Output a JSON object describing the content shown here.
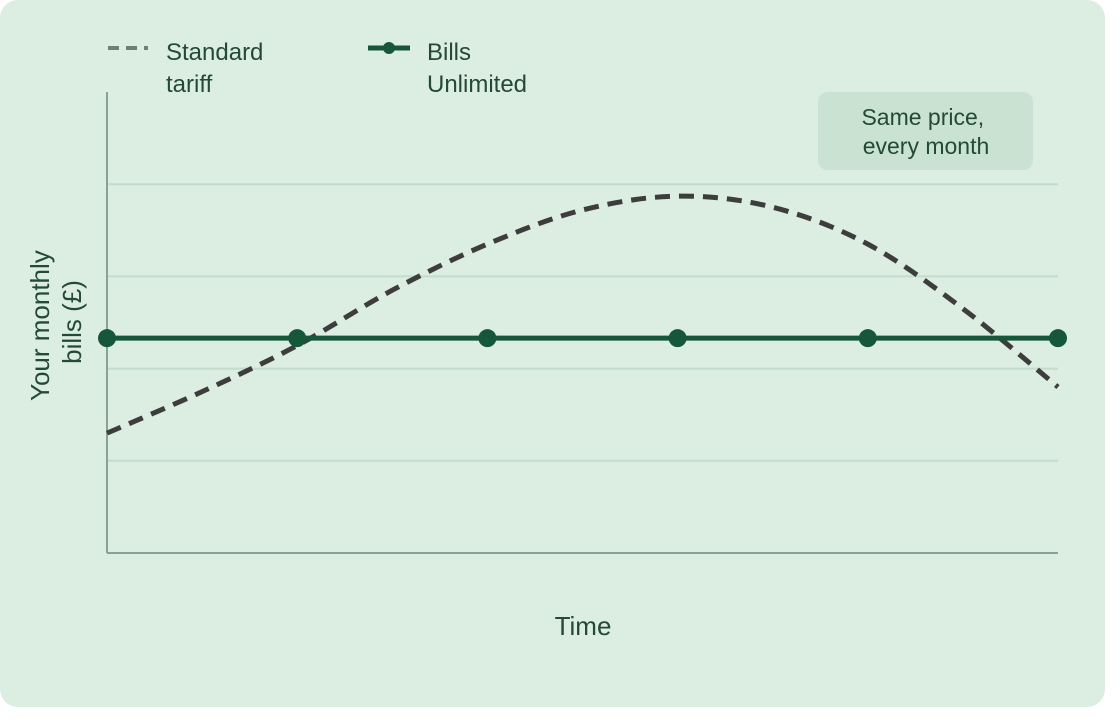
{
  "chart_data": {
    "type": "line",
    "title": "",
    "xlabel": "Time",
    "ylabel": "Your monthly bills (£)",
    "ylabel_lines": [
      "Your monthly",
      "bills (£)"
    ],
    "xlim": [
      0,
      5
    ],
    "ylim": [
      0,
      5
    ],
    "grid": true,
    "grid_y": [
      1,
      2,
      3,
      4
    ],
    "legend_position": "top-left",
    "annotation": {
      "lines": [
        "Same price,",
        "every month"
      ]
    },
    "series": [
      {
        "name": "Standard tariff",
        "name_lines": [
          "Standard",
          "tariff"
        ],
        "style": "dashed",
        "color": "#3d3d3d",
        "x": [
          0,
          0.5,
          1,
          1.5,
          2,
          2.5,
          3,
          3.5,
          4,
          4.5,
          5
        ],
        "values": [
          1.3,
          1.75,
          2.25,
          2.85,
          3.35,
          3.72,
          3.87,
          3.75,
          3.35,
          2.65,
          1.8
        ]
      },
      {
        "name": "Bills Unlimited",
        "name_lines": [
          "Bills",
          "Unlimited"
        ],
        "style": "solid-markers",
        "color": "#16573a",
        "x": [
          0,
          1,
          2,
          3,
          4,
          5
        ],
        "values": [
          2.33,
          2.33,
          2.33,
          2.33,
          2.33,
          2.33
        ]
      }
    ]
  }
}
